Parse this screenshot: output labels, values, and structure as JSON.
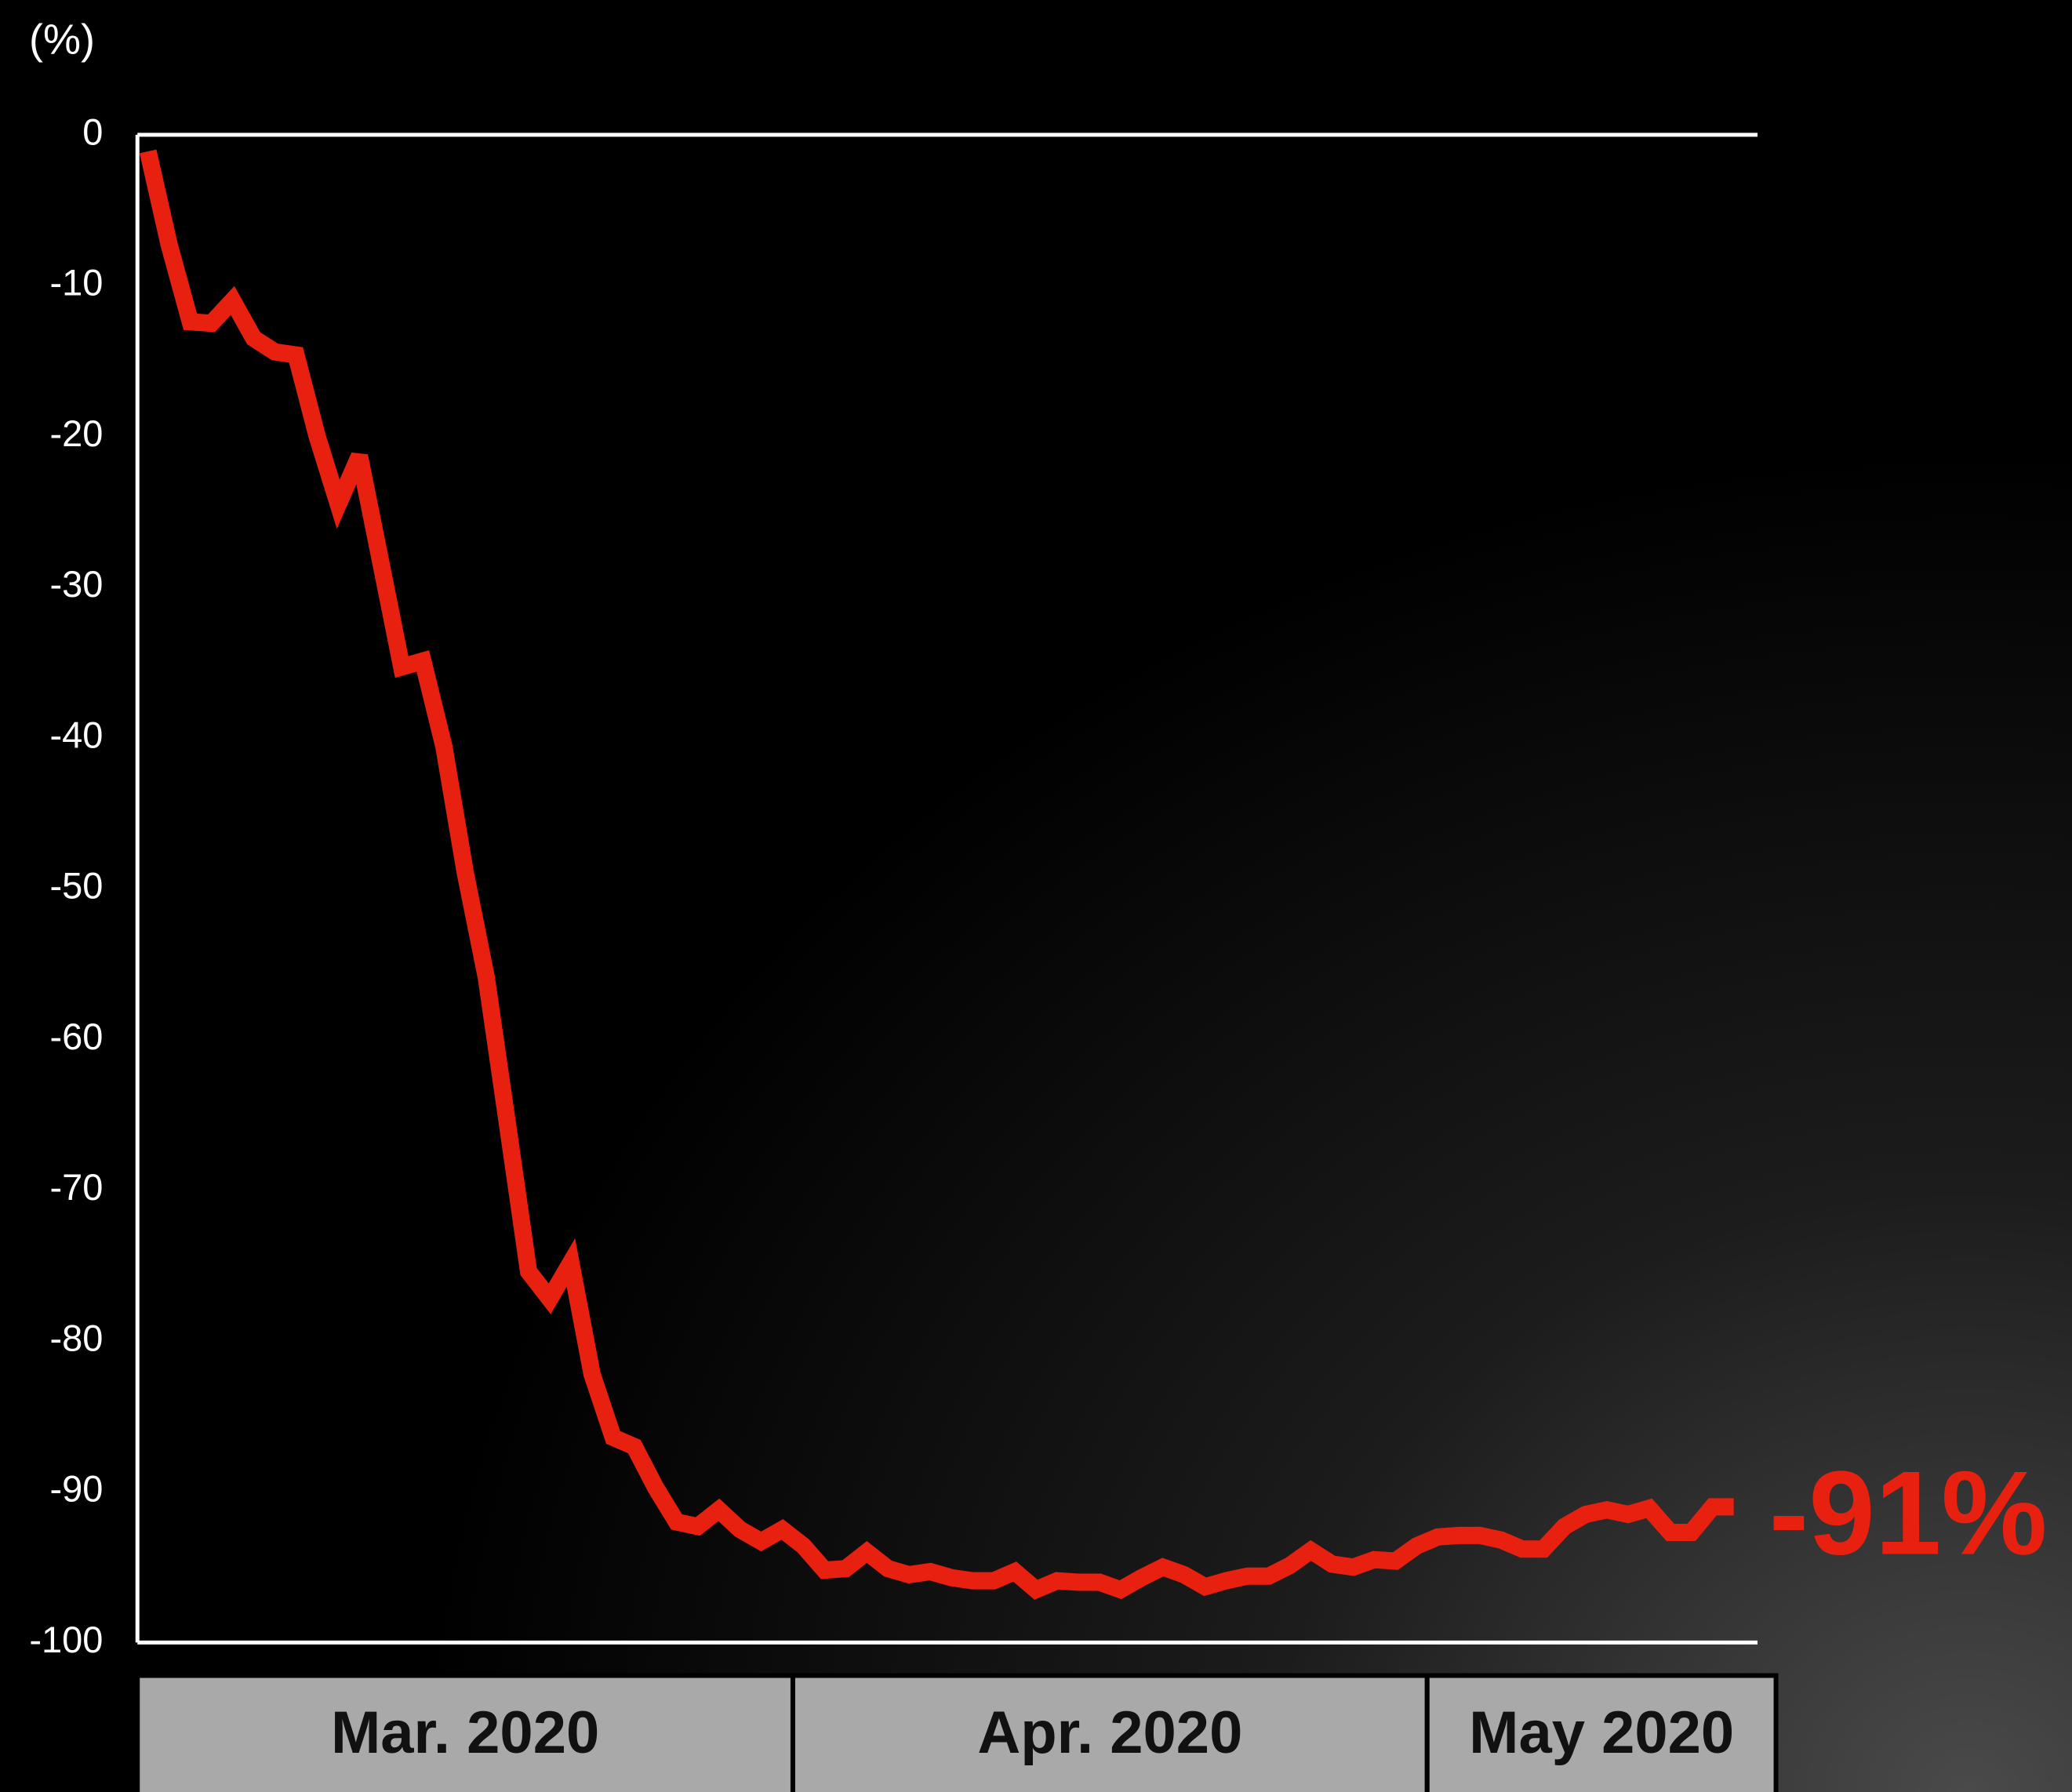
{
  "chart_data": {
    "type": "line",
    "y_unit": "(%)",
    "x": [
      0,
      1,
      2,
      3,
      4,
      5,
      6,
      7,
      8,
      9,
      10,
      11,
      12,
      13,
      14,
      15,
      16,
      17,
      18,
      19,
      20,
      21,
      22,
      23,
      24,
      25,
      26,
      27,
      28,
      29,
      30,
      31,
      32,
      33,
      34,
      35,
      36,
      37,
      38,
      39,
      40,
      41,
      42,
      43,
      44,
      45,
      46,
      47,
      48,
      49,
      50,
      51,
      52,
      53,
      54,
      55,
      56,
      57,
      58,
      59,
      60,
      61,
      62,
      63,
      64,
      65,
      66,
      67,
      68,
      69,
      70,
      71,
      72,
      73,
      74,
      75
    ],
    "series": [
      {
        "color": "#e8200f",
        "values": [
          -1.1,
          -7.3,
          -12.4,
          -12.5,
          -11,
          -13.5,
          -14.4,
          -14.6,
          -20,
          -24.5,
          -21.3,
          -28.3,
          -35.3,
          -34.9,
          -40.6,
          -48.9,
          -55.9,
          -65.6,
          -75.4,
          -77.2,
          -74.8,
          -82.2,
          -86.4,
          -87,
          -89.7,
          -92,
          -92.3,
          -91.2,
          -92.5,
          -93.3,
          -92.5,
          -93.6,
          -95.2,
          -95.1,
          -94,
          -95.1,
          -95.5,
          -95.3,
          -95.7,
          -95.9,
          -95.9,
          -95.3,
          -96.5,
          -95.9,
          -96,
          -96,
          -96.5,
          -95.7,
          -95,
          -95.5,
          -96.3,
          -95.9,
          -95.6,
          -95.6,
          -94.9,
          -93.9,
          -94.8,
          -95,
          -94.5,
          -94.6,
          -93.6,
          -93,
          -92.9,
          -92.9,
          -93.2,
          -93.8,
          -93.8,
          -92.3,
          -91.5,
          -91.2,
          -91.5,
          -91.1,
          -92.7,
          -92.7,
          -91,
          -91
        ],
        "value_labels": [
          null,
          null,
          null,
          null,
          null,
          null,
          null,
          null,
          null,
          null,
          null,
          null,
          null,
          null,
          null,
          null,
          null,
          null,
          null,
          null,
          null,
          null,
          null,
          null,
          null,
          null,
          null,
          null,
          null,
          null,
          null,
          null,
          null,
          null,
          null,
          null,
          null,
          null,
          null,
          null,
          null,
          null,
          null,
          null,
          null,
          null,
          null,
          null,
          null,
          null,
          null,
          null,
          null,
          null,
          null,
          null,
          null,
          null,
          null,
          null,
          null,
          null,
          null,
          null,
          null,
          null,
          null,
          null,
          null,
          null,
          null,
          null,
          null,
          null,
          null,
          "-91%"
        ]
      }
    ],
    "xlim": [
      -0.5,
      77
    ],
    "x_bands": [
      {
        "label": "Mar. 2020",
        "range": [
          -0.5,
          30.5
        ]
      },
      {
        "label": "Apr. 2020",
        "range": [
          30.5,
          60.5
        ]
      },
      {
        "label": "May 2020",
        "range": [
          60.5,
          77
        ]
      }
    ],
    "ylim": [
      -100,
      0
    ],
    "yticks": [
      0,
      -10,
      -20,
      -30,
      -40,
      -50,
      -60,
      -70,
      -80,
      -90,
      -100
    ]
  }
}
